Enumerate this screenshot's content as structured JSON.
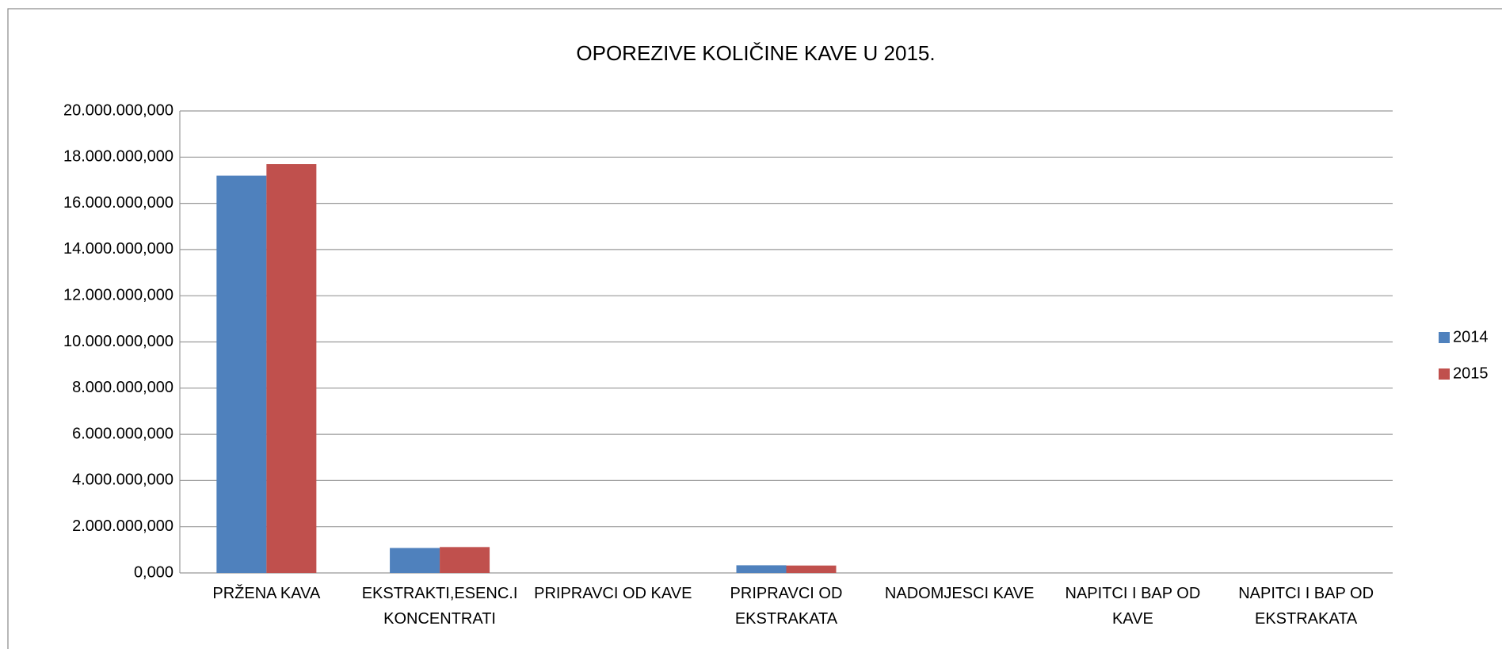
{
  "chart_data": {
    "type": "bar",
    "title": "OPOREZIVE KOLIČINE KAVE  U 2015.",
    "categories": [
      "PRŽENA KAVA",
      "EKSTRAKTI,ESENC.I KONCENTRATI",
      "PRIPRAVCI OD KAVE",
      "PRIPRAVCI OD EKSTRAKATA",
      "NADOMJESCI KAVE",
      "NAPITCI I BAP OD KAVE",
      "NAPITCI I BAP OD EKSTRAKATA"
    ],
    "series": [
      {
        "name": "2014",
        "color": "#4f81bd",
        "values": [
          17200000000,
          1080000000,
          0,
          330000000,
          0,
          0,
          0
        ]
      },
      {
        "name": "2015",
        "color": "#c0504d",
        "values": [
          17700000000,
          1120000000,
          0,
          320000000,
          0,
          0,
          0
        ]
      }
    ],
    "ylim": [
      0,
      20000000000
    ],
    "yticks": [
      {
        "value": 0,
        "label": "0,000"
      },
      {
        "value": 2000000000,
        "label": "2.000.000,000"
      },
      {
        "value": 4000000000,
        "label": "4.000.000,000"
      },
      {
        "value": 6000000000,
        "label": "6.000.000,000"
      },
      {
        "value": 8000000000,
        "label": "8.000.000,000"
      },
      {
        "value": 10000000000,
        "label": "10.000.000,000"
      },
      {
        "value": 12000000000,
        "label": "12.000.000,000"
      },
      {
        "value": 14000000000,
        "label": "14.000.000,000"
      },
      {
        "value": 16000000000,
        "label": "16.000.000,000"
      },
      {
        "value": 18000000000,
        "label": "18.000.000,000"
      },
      {
        "value": 20000000000,
        "label": "20.000.000,000"
      }
    ],
    "grid": true,
    "legend": "right"
  }
}
